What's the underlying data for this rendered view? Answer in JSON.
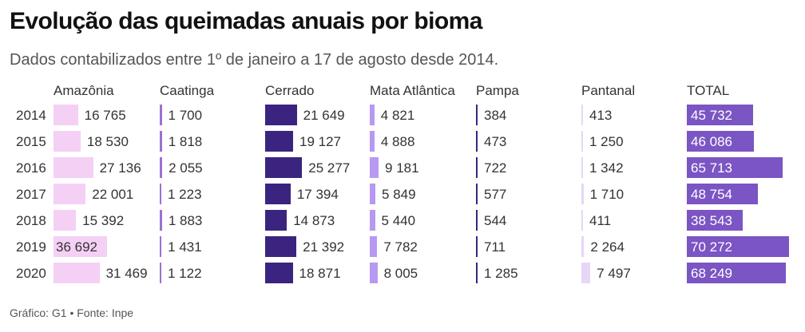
{
  "chart_data": {
    "type": "table",
    "title": "Evolução das queimadas anuais por bioma",
    "subtitle": "Dados contabilizados entre 1º de janeiro a 17 de agosto desde 2014.",
    "categories": [
      "2014",
      "2015",
      "2016",
      "2017",
      "2018",
      "2019",
      "2020"
    ],
    "series": [
      {
        "name": "Amazônia",
        "values": [
          16765,
          18530,
          27136,
          22001,
          15392,
          36692,
          31469
        ],
        "labels": [
          "16 765",
          "18 530",
          "27 136",
          "22 001",
          "15 392",
          "36 692",
          "31 469"
        ],
        "color": "#f5d0f5"
      },
      {
        "name": "Caatinga",
        "values": [
          1700,
          1818,
          2055,
          1223,
          1883,
          1431,
          1122
        ],
        "labels": [
          "1 700",
          "1 818",
          "2 055",
          "1 223",
          "1 883",
          "1 431",
          "1 122"
        ],
        "color": "#9d6fd6"
      },
      {
        "name": "Cerrado",
        "values": [
          21649,
          19127,
          25277,
          17394,
          14873,
          21392,
          18871
        ],
        "labels": [
          "21 649",
          "19 127",
          "25 277",
          "17 394",
          "14 873",
          "21 392",
          "18 871"
        ],
        "color": "#3b2480"
      },
      {
        "name": "Mata Atlântica",
        "values": [
          4821,
          4888,
          9181,
          5849,
          5440,
          7782,
          8005
        ],
        "labels": [
          "4 821",
          "4 888",
          "9 181",
          "5 849",
          "5 440",
          "7 782",
          "8 005"
        ],
        "color": "#b799f2"
      },
      {
        "name": "Pampa",
        "values": [
          384,
          473,
          722,
          577,
          544,
          711,
          1285
        ],
        "labels": [
          "384",
          "473",
          "722",
          "577",
          "544",
          "711",
          "1 285"
        ],
        "color": "#3b2480"
      },
      {
        "name": "Pantanal",
        "values": [
          413,
          1250,
          1342,
          1710,
          411,
          2264,
          7497
        ],
        "labels": [
          "413",
          "1 250",
          "1 342",
          "1 710",
          "411",
          "2 264",
          "7 497"
        ],
        "color": "#e6d6f8"
      },
      {
        "name": "TOTAL",
        "values": [
          45732,
          46086,
          65713,
          48754,
          38543,
          70272,
          68249
        ],
        "labels": [
          "45 732",
          "46 086",
          "65 713",
          "48 754",
          "38 543",
          "70 272",
          "68 249"
        ],
        "color": "#7b55c4"
      }
    ]
  },
  "footer": "Gráfico: G1 • Fonte: Inpe"
}
